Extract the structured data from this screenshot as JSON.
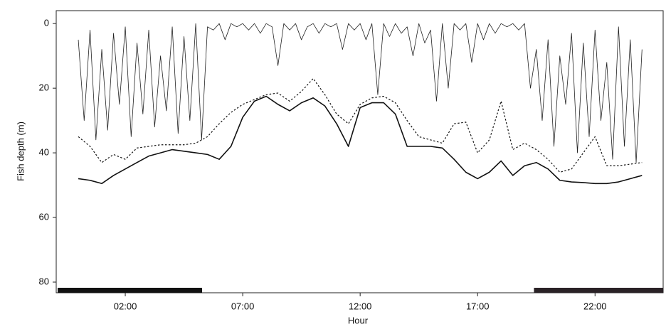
{
  "chart_data": {
    "type": "line",
    "y_label": "Fish depth (m)",
    "x_label": "Hour",
    "xlim": [
      -0.94,
      24.9
    ],
    "ylim": [
      83.3,
      -4
    ],
    "xticks": [
      {
        "value": 2,
        "label": "02:00"
      },
      {
        "value": 7,
        "label": "07:00"
      },
      {
        "value": 12,
        "label": "12:00"
      },
      {
        "value": 17,
        "label": "17:00"
      },
      {
        "value": 22,
        "label": "22:00"
      }
    ],
    "yticks": [
      0,
      20,
      40,
      60,
      80
    ],
    "night": [
      {
        "start": -0.88,
        "end": 5.27,
        "color": "#111111"
      },
      {
        "start": 19.4,
        "end": 24.9,
        "color": "#2a2226"
      }
    ],
    "series": [
      {
        "color": "#222222",
        "width": 0.8,
        "dash": "none",
        "x": [
          0,
          0.25,
          0.5,
          0.75,
          1,
          1.25,
          1.5,
          1.75,
          2,
          2.25,
          2.5,
          2.75,
          3,
          3.25,
          3.5,
          3.75,
          4,
          4.25,
          4.5,
          4.75,
          5,
          5.25,
          5.5,
          5.75,
          6,
          6.25,
          6.5,
          6.75,
          7,
          7.25,
          7.5,
          7.75,
          8,
          8.25,
          8.5,
          8.75,
          9,
          9.25,
          9.5,
          9.75,
          10,
          10.25,
          10.5,
          10.75,
          11,
          11.25,
          11.5,
          11.75,
          12,
          12.25,
          12.5,
          12.75,
          13,
          13.25,
          13.5,
          13.75,
          14,
          14.25,
          14.5,
          14.75,
          15,
          15.25,
          15.5,
          15.75,
          16,
          16.25,
          16.5,
          16.75,
          17,
          17.25,
          17.5,
          17.75,
          18,
          18.25,
          18.5,
          18.75,
          19,
          19.25,
          19.5,
          19.75,
          20,
          20.25,
          20.5,
          20.75,
          21,
          21.25,
          21.5,
          21.75,
          22,
          22.25,
          22.5,
          22.75,
          23,
          23.25,
          23.5,
          23.75,
          24
        ],
        "values": [
          5,
          30,
          2,
          36,
          8,
          33,
          3,
          25,
          1,
          35,
          6,
          28,
          2,
          32,
          10,
          27,
          1,
          34,
          4,
          30,
          0,
          36,
          1,
          2,
          0,
          5,
          0,
          1,
          0,
          2,
          0,
          3,
          0,
          1,
          13,
          0,
          2,
          0,
          5,
          1,
          0,
          3,
          0,
          1,
          0,
          8,
          0,
          2,
          0,
          5,
          0,
          22,
          0,
          4,
          0,
          3,
          1,
          10,
          0,
          6,
          2,
          24,
          0,
          20,
          0,
          2,
          0,
          12,
          0,
          5,
          0,
          3,
          0,
          1,
          0,
          2,
          0,
          20,
          8,
          30,
          5,
          38,
          10,
          25,
          3,
          40,
          6,
          35,
          2,
          30,
          12,
          42,
          1,
          38,
          5,
          43,
          8
        ]
      },
      {
        "color": "#111111",
        "width": 1.2,
        "dash": "dotted",
        "x": [
          0,
          0.5,
          1,
          1.5,
          2,
          2.5,
          3,
          3.5,
          4,
          4.5,
          5,
          5.5,
          6,
          6.5,
          7,
          7.5,
          8,
          8.5,
          9,
          9.5,
          10,
          10.5,
          11,
          11.5,
          12,
          12.5,
          13,
          13.5,
          14,
          14.5,
          15,
          15.5,
          16,
          16.5,
          17,
          17.5,
          18,
          18.5,
          19,
          19.5,
          20,
          20.5,
          21,
          21.5,
          22,
          22.5,
          23,
          23.5,
          24
        ],
        "values": [
          35,
          38,
          43,
          40.5,
          42,
          38.5,
          38,
          37.5,
          37.5,
          37.5,
          37,
          35,
          31,
          27.5,
          25,
          23.5,
          22,
          21.5,
          24,
          21,
          17,
          22,
          28,
          31,
          25,
          23,
          22.5,
          24.5,
          30,
          35,
          36,
          37,
          31,
          30.5,
          40,
          36,
          24,
          39,
          37,
          39,
          42,
          46,
          45,
          40,
          35,
          44,
          44,
          43.5,
          43
        ]
      },
      {
        "color": "#111111",
        "width": 1.6,
        "dash": "none",
        "x": [
          0,
          0.5,
          1,
          1.5,
          2,
          2.5,
          3,
          3.5,
          4,
          4.5,
          5,
          5.5,
          6,
          6.5,
          7,
          7.5,
          8,
          8.5,
          9,
          9.5,
          10,
          10.5,
          11,
          11.5,
          12,
          12.5,
          13,
          13.5,
          14,
          14.5,
          15,
          15.5,
          16,
          16.5,
          17,
          17.5,
          18,
          18.5,
          19,
          19.5,
          20,
          20.5,
          21,
          21.5,
          22,
          22.5,
          23,
          23.5,
          24
        ],
        "values": [
          48,
          48.5,
          49.5,
          47,
          45,
          43,
          41,
          40,
          39,
          39.5,
          40,
          40.5,
          42,
          38,
          29,
          24,
          22.5,
          25,
          27,
          24.5,
          23,
          25.5,
          31,
          38,
          26,
          24.5,
          24.5,
          28,
          38,
          38,
          38,
          38.5,
          42,
          46,
          48,
          46,
          42.5,
          47,
          44,
          43,
          45,
          48.5,
          49,
          49.2,
          49.5,
          49.5,
          49,
          48,
          47
        ]
      }
    ]
  }
}
